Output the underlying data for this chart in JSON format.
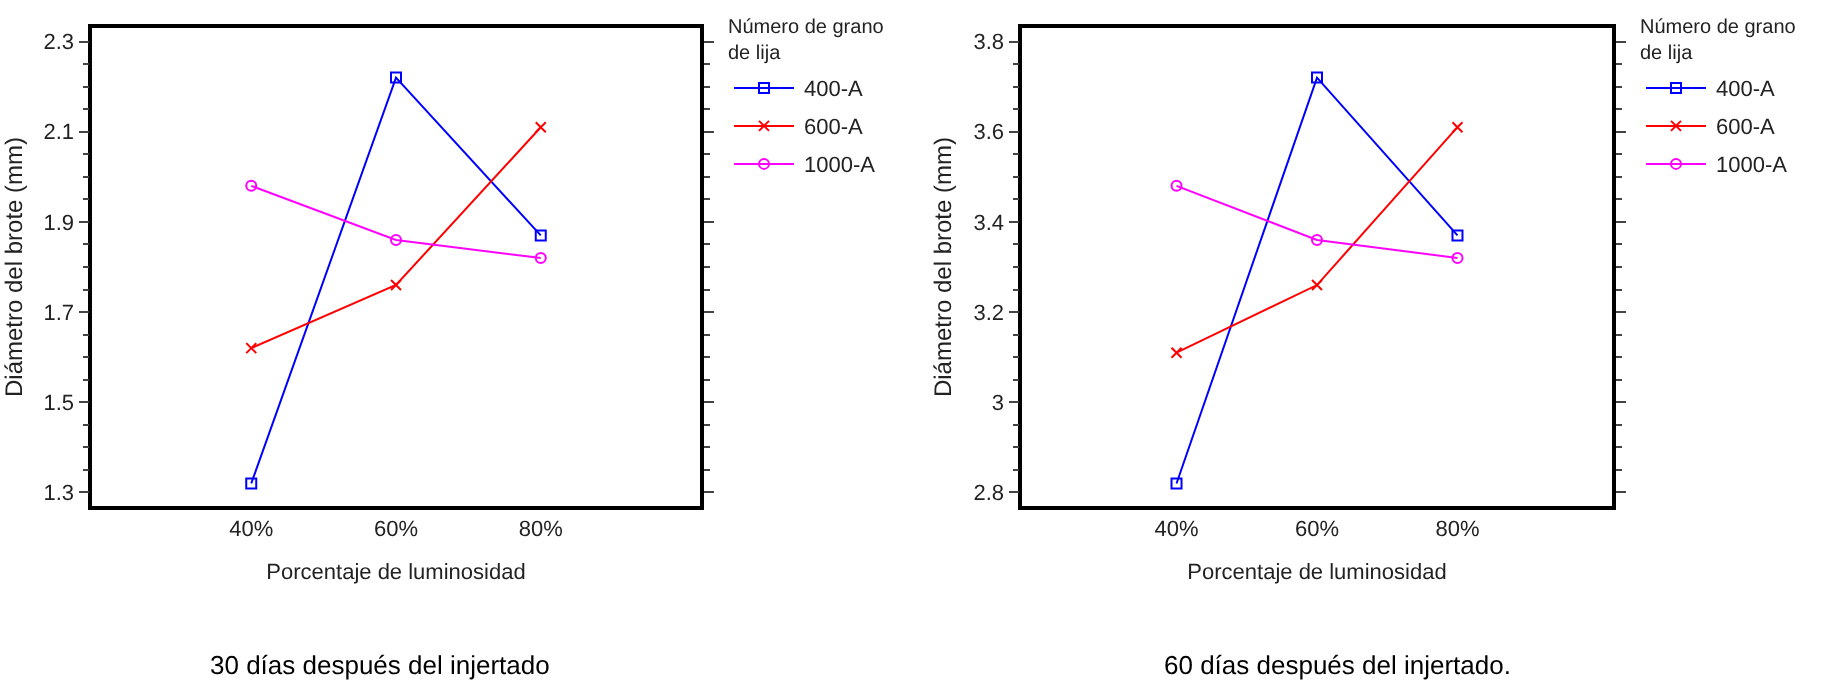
{
  "chart_data": [
    {
      "type": "line",
      "title": "30 días después del injertado",
      "xlabel": "Porcentaje de luminosidad",
      "ylabel": "Diámetro del brote (mm)",
      "legend_title": "Número de grano de lija",
      "legend": "right",
      "categories": [
        "40%",
        "60%",
        "80%"
      ],
      "ylim": [
        1.27,
        2.33
      ],
      "yticks": [
        1.3,
        1.5,
        1.7,
        1.9,
        2.1,
        2.3
      ],
      "series": [
        {
          "name": "400-A",
          "color": "#0000ff",
          "marker": "square",
          "values": [
            1.32,
            2.22,
            1.87
          ]
        },
        {
          "name": "600-A",
          "color": "#ff0000",
          "marker": "cross",
          "values": [
            1.62,
            1.76,
            2.11
          ]
        },
        {
          "name": "1000-A",
          "color": "#ff00ff",
          "marker": "circle",
          "values": [
            1.98,
            1.86,
            1.82
          ]
        }
      ]
    },
    {
      "type": "line",
      "title": "60 días después del injertado.",
      "xlabel": "Porcentaje de luminosidad",
      "ylabel": "Diámetro del brote (mm)",
      "legend_title": "Número de grano de lija",
      "legend": "right",
      "categories": [
        "40%",
        "60%",
        "80%"
      ],
      "ylim": [
        2.77,
        3.83
      ],
      "yticks": [
        2.8,
        3,
        3.2,
        3.4,
        3.6,
        3.8
      ],
      "series": [
        {
          "name": "400-A",
          "color": "#0000ff",
          "marker": "square",
          "values": [
            2.82,
            3.72,
            3.37
          ]
        },
        {
          "name": "600-A",
          "color": "#ff0000",
          "marker": "cross",
          "values": [
            3.11,
            3.26,
            3.61
          ]
        },
        {
          "name": "1000-A",
          "color": "#ff00ff",
          "marker": "circle",
          "values": [
            3.48,
            3.36,
            3.32
          ]
        }
      ]
    }
  ]
}
